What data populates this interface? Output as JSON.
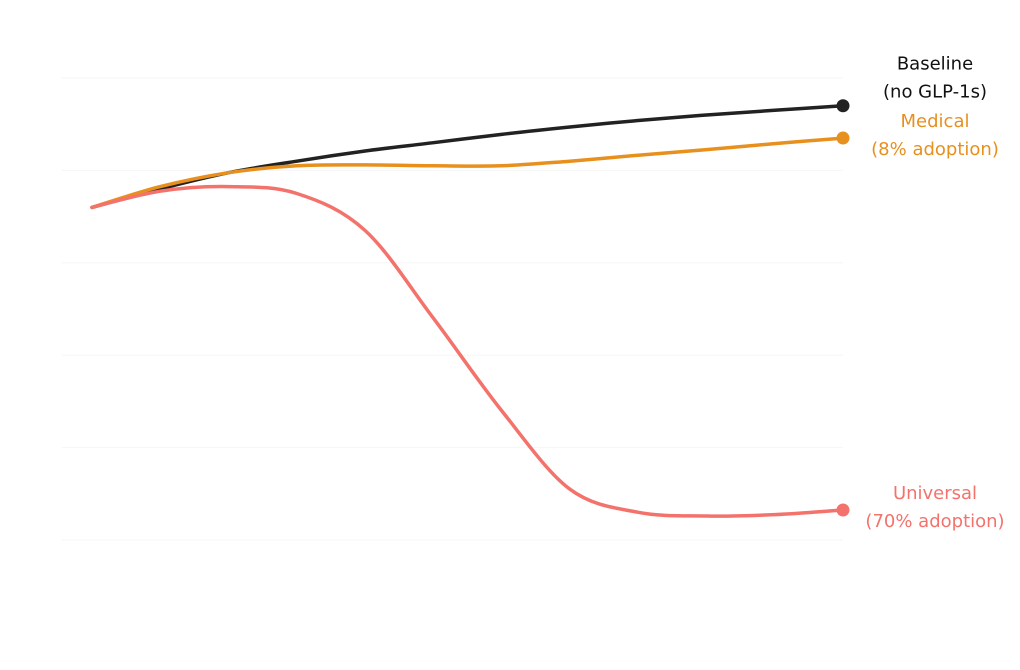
{
  "chart_data": {
    "type": "line",
    "title": "",
    "xlabel": "",
    "ylabel": "",
    "grid": true,
    "x_range": [
      0,
      11
    ],
    "ylim": [
      0,
      100
    ],
    "series": [
      {
        "key": "baseline",
        "label_line1": "Baseline",
        "label_line2": "(no GLP-1s)",
        "color": "#222222",
        "points": [
          [
            0,
            72
          ],
          [
            1,
            76
          ],
          [
            2,
            79.5
          ],
          [
            3,
            82
          ],
          [
            4,
            84.2
          ],
          [
            5,
            86
          ],
          [
            6,
            87.8
          ],
          [
            7,
            89.4
          ],
          [
            8,
            90.8
          ],
          [
            9,
            92
          ],
          [
            10,
            93
          ],
          [
            11,
            94
          ]
        ]
      },
      {
        "key": "medical",
        "label_line1": "Medical",
        "label_line2": "(8% adoption)",
        "color": "#e8901e",
        "points": [
          [
            0,
            72
          ],
          [
            1,
            76.5
          ],
          [
            2,
            79.5
          ],
          [
            3,
            81
          ],
          [
            4,
            81.2
          ],
          [
            5,
            81
          ],
          [
            6,
            81
          ],
          [
            7,
            82
          ],
          [
            8,
            83.3
          ],
          [
            9,
            84.5
          ],
          [
            10,
            85.8
          ],
          [
            11,
            87
          ]
        ]
      },
      {
        "key": "universal",
        "label_line1": "Universal",
        "label_line2": "(70% adoption)",
        "color": "#f4726c",
        "points": [
          [
            0,
            72
          ],
          [
            1,
            75.5
          ],
          [
            2,
            76.5
          ],
          [
            3,
            75
          ],
          [
            4,
            67
          ],
          [
            5,
            48
          ],
          [
            6,
            28
          ],
          [
            7,
            11
          ],
          [
            8,
            6
          ],
          [
            9,
            5.2
          ],
          [
            10,
            5.5
          ],
          [
            11,
            6.5
          ]
        ]
      }
    ]
  }
}
